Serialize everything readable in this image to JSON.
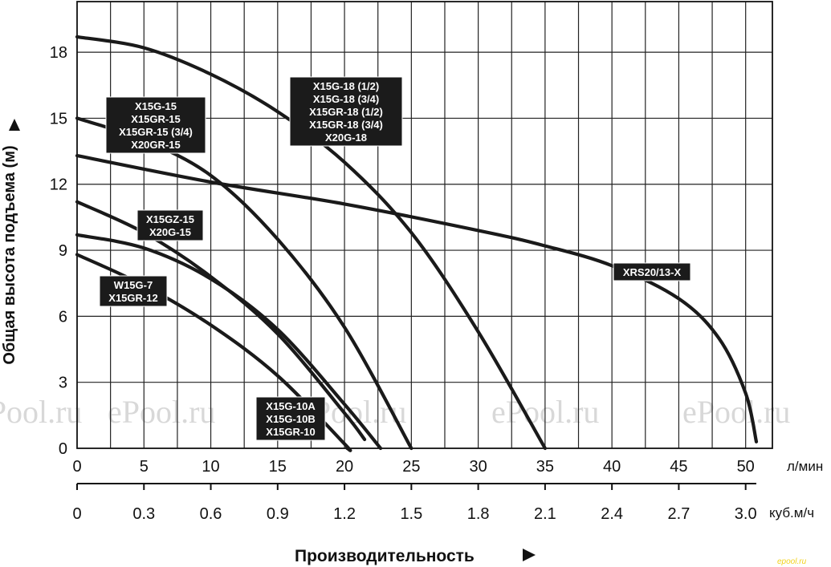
{
  "chart_data": {
    "type": "line",
    "ylabel": "Общая высота подъема (м)",
    "xlabel": "Производительность",
    "x_unit_primary": "л/мин",
    "x_unit_secondary": "куб.м/ч",
    "xlim": [
      0,
      52
    ],
    "ylim": [
      0,
      20.3
    ],
    "x_ticks": [
      "0",
      "5",
      "10",
      "15",
      "20",
      "25",
      "30",
      "35",
      "40",
      "45",
      "50"
    ],
    "x_ticks_secondary": [
      "0",
      "0.3",
      "0.6",
      "0.9",
      "1.2",
      "1.5",
      "1.8",
      "2.1",
      "2.4",
      "2.7",
      "3.0"
    ],
    "y_ticks": [
      "0",
      "3",
      "6",
      "9",
      "12",
      "15",
      "18"
    ],
    "grid": true,
    "watermark": "ePool.ru",
    "corner_mark": "epool.ru",
    "series": [
      {
        "labels": [
          "X15G-18 (1/2)",
          "X15G-18 (3/4)",
          "X15GR-18 (1/2)",
          "X15GR-18 (3/4)",
          "X20G-18"
        ],
        "x": [
          0,
          5,
          10,
          15,
          20,
          25,
          30,
          35
        ],
        "y": [
          18.7,
          18.2,
          17.0,
          15.3,
          13.0,
          9.8,
          5.3,
          0
        ]
      },
      {
        "labels": [
          "X15G-15",
          "X15GR-15",
          "X15GR-15 (3/4)",
          "X20GR-15"
        ],
        "x": [
          0,
          5,
          10,
          15,
          20,
          25
        ],
        "y": [
          15.0,
          14.0,
          12.4,
          9.5,
          5.5,
          0
        ]
      },
      {
        "labels": [
          "XRS20/13-X"
        ],
        "x": [
          0,
          10,
          20,
          30,
          35,
          40,
          45,
          48,
          50,
          50.8
        ],
        "y": [
          13.3,
          12.1,
          11.1,
          9.9,
          9.2,
          8.3,
          6.8,
          5.0,
          2.5,
          0.3
        ]
      },
      {
        "labels": [
          "X15GZ-15",
          "X20G-15"
        ],
        "x": [
          0,
          5,
          10,
          15,
          20,
          21.5
        ],
        "y": [
          11.2,
          9.8,
          7.8,
          5.2,
          1.6,
          0.4
        ]
      },
      {
        "labels": [
          "X15G-10A",
          "X15G-10B",
          "X15GR-10"
        ],
        "x": [
          0,
          5,
          10,
          15,
          20,
          22.7
        ],
        "y": [
          9.7,
          9.1,
          7.7,
          5.4,
          2.0,
          0
        ]
      },
      {
        "labels": [
          "W15G-7",
          "X15GR-12"
        ],
        "x": [
          0,
          5,
          10,
          15,
          20,
          20.2
        ],
        "y": [
          8.8,
          7.4,
          5.6,
          3.3,
          0.2,
          0
        ]
      }
    ]
  }
}
